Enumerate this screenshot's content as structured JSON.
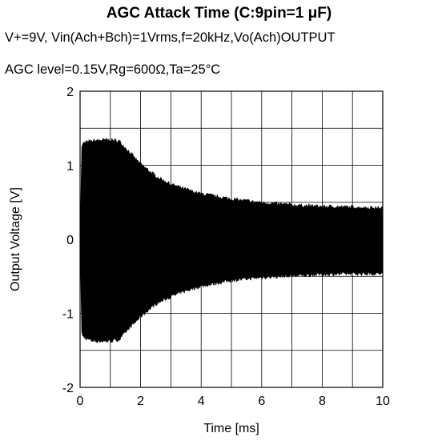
{
  "chart_data": {
    "type": "line",
    "title": "AGC Attack Time  (C:9pin=1 μF)",
    "subtitle": "V+=9V, Vin(Ach+Bch)=1Vrms,f=20kHz,Vo(Ach)OUTPUT",
    "subtitle2": "AGC level=0.15V,Rg=600Ω,Ta=25°C",
    "xlabel": "Time   [ms]",
    "ylabel": "Output Voltage   [V]",
    "xlim": [
      0,
      10
    ],
    "ylim": [
      -2,
      2
    ],
    "x_ticks": [
      "0",
      "2",
      "4",
      "6",
      "8",
      "10"
    ],
    "y_ticks": [
      "2",
      "1",
      "0",
      "-1",
      "-2"
    ],
    "grid": true,
    "series": [
      {
        "color": "#000000",
        "x": [
          0,
          0.05,
          0.2,
          0.5,
          1.0,
          1.3,
          1.6,
          2.0,
          2.5,
          3.0,
          3.5,
          4.0,
          5.0,
          6.0,
          7.0,
          8.0,
          9.0,
          10.0
        ],
        "upper": [
          0.2,
          1.28,
          1.32,
          1.34,
          1.35,
          1.33,
          1.2,
          1.02,
          0.86,
          0.75,
          0.68,
          0.62,
          0.55,
          0.5,
          0.47,
          0.45,
          0.44,
          0.43
        ],
        "lower": [
          -0.2,
          -1.3,
          -1.35,
          -1.38,
          -1.38,
          -1.36,
          -1.22,
          -1.05,
          -0.88,
          -0.78,
          -0.7,
          -0.64,
          -0.56,
          -0.52,
          -0.5,
          -0.48,
          -0.47,
          -0.47
        ]
      }
    ]
  }
}
